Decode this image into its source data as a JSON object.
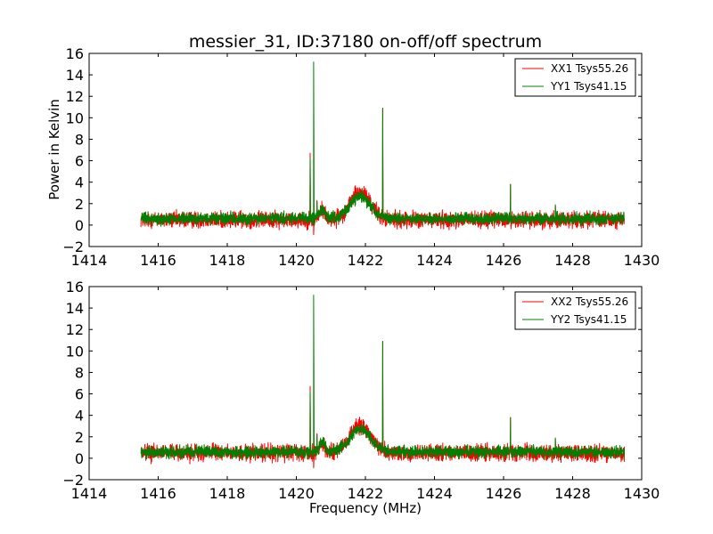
{
  "figure": {
    "title": "messier_31, ID:37180 on-off/off spectrum",
    "xlabel": "Frequency (MHz)",
    "ylabel": "Power in Kelvin"
  },
  "chart_data": [
    {
      "type": "line",
      "title": "messier_31, ID:37180 on-off/off spectrum",
      "xlabel": "",
      "ylabel": "Power in Kelvin",
      "xlim": [
        1414,
        1430
      ],
      "ylim": [
        -2,
        16
      ],
      "xticks": [
        "1414",
        "1416",
        "1418",
        "1420",
        "1422",
        "1424",
        "1426",
        "1428",
        "1430"
      ],
      "yticks": [
        "−2",
        "0",
        "2",
        "4",
        "6",
        "8",
        "10",
        "12",
        "14",
        "16"
      ],
      "legend_position": "top-right",
      "grid": false,
      "series": [
        {
          "name": "XX1 Tsys55.26",
          "color": "#ff0000",
          "baseline": 0.5,
          "noise": 0.55,
          "x_range": [
            1415.5,
            1429.5
          ],
          "features": [
            {
              "x": 1420.4,
              "y": 6.7
            },
            {
              "x": 1420.5,
              "y": -0.9
            },
            {
              "x": 1420.6,
              "y": 2.3
            },
            {
              "x": 1421.85,
              "y": 3.8
            },
            {
              "x": 1422.5,
              "y": 10.9
            },
            {
              "x": 1426.2,
              "y": 3.8
            },
            {
              "x": 1427.5,
              "y": 1.8
            }
          ]
        },
        {
          "name": "YY1 Tsys41.15",
          "color": "#008000",
          "baseline": 0.6,
          "noise": 0.4,
          "x_range": [
            1415.5,
            1429.5
          ],
          "features": [
            {
              "x": 1420.4,
              "y": 6.2
            },
            {
              "x": 1420.5,
              "y": 15.2
            },
            {
              "x": 1420.6,
              "y": 2.2
            },
            {
              "x": 1421.85,
              "y": 3.3
            },
            {
              "x": 1422.5,
              "y": 10.9
            },
            {
              "x": 1426.2,
              "y": 3.8
            },
            {
              "x": 1427.5,
              "y": 1.9
            }
          ]
        }
      ]
    },
    {
      "type": "line",
      "title": "",
      "xlabel": "Frequency (MHz)",
      "ylabel": "",
      "xlim": [
        1414,
        1430
      ],
      "ylim": [
        -2,
        16
      ],
      "xticks": [
        "1414",
        "1416",
        "1418",
        "1420",
        "1422",
        "1424",
        "1426",
        "1428",
        "1430"
      ],
      "yticks": [
        "−2",
        "0",
        "2",
        "4",
        "6",
        "8",
        "10",
        "12",
        "14",
        "16"
      ],
      "legend_position": "top-right",
      "grid": false,
      "series": [
        {
          "name": "XX2 Tsys55.26",
          "color": "#ff0000",
          "baseline": 0.5,
          "noise": 0.55,
          "x_range": [
            1415.5,
            1429.5
          ],
          "features": [
            {
              "x": 1420.4,
              "y": 6.7
            },
            {
              "x": 1420.5,
              "y": -0.9
            },
            {
              "x": 1420.6,
              "y": 2.3
            },
            {
              "x": 1421.85,
              "y": 3.8
            },
            {
              "x": 1422.5,
              "y": 10.9
            },
            {
              "x": 1426.2,
              "y": 3.8
            },
            {
              "x": 1427.5,
              "y": 1.8
            }
          ]
        },
        {
          "name": "YY2 Tsys41.15",
          "color": "#008000",
          "baseline": 0.6,
          "noise": 0.4,
          "x_range": [
            1415.5,
            1429.5
          ],
          "features": [
            {
              "x": 1420.4,
              "y": 6.2
            },
            {
              "x": 1420.5,
              "y": 15.2
            },
            {
              "x": 1420.6,
              "y": 2.2
            },
            {
              "x": 1421.85,
              "y": 3.3
            },
            {
              "x": 1422.5,
              "y": 10.9
            },
            {
              "x": 1426.2,
              "y": 3.8
            },
            {
              "x": 1427.5,
              "y": 1.9
            }
          ]
        }
      ]
    }
  ]
}
